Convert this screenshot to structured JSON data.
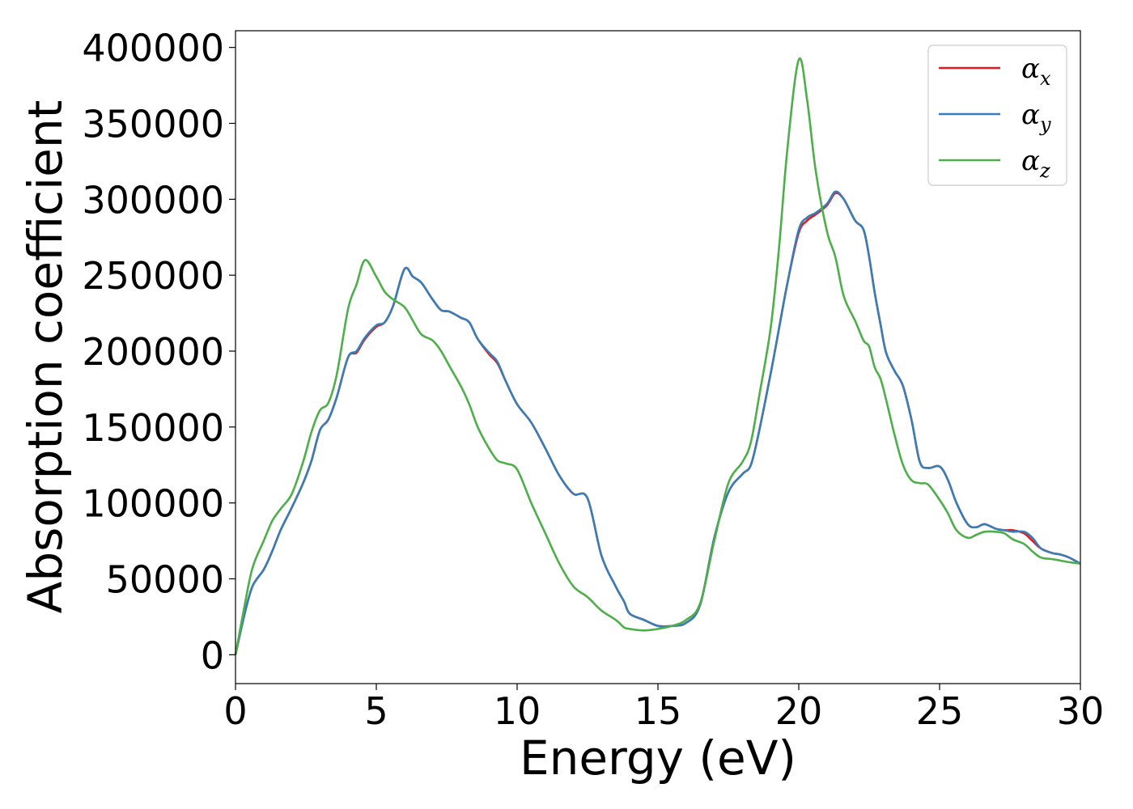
{
  "chart_data": {
    "type": "line",
    "title": "",
    "xlabel": "Energy (eV)",
    "ylabel": "Absorption coefficient",
    "xlim": [
      0,
      30
    ],
    "ylim": [
      -19000,
      411000
    ],
    "xticks": [
      0,
      5,
      10,
      15,
      20,
      25,
      30
    ],
    "xtick_labels": [
      "0",
      "5",
      "10",
      "15",
      "20",
      "25",
      "30"
    ],
    "yticks": [
      0,
      50000,
      100000,
      150000,
      200000,
      250000,
      300000,
      350000,
      400000
    ],
    "ytick_labels": [
      "0",
      "50000",
      "100000",
      "150000",
      "200000",
      "250000",
      "300000",
      "350000",
      "400000"
    ],
    "grid": false,
    "legend_position": "top-right",
    "series": [
      {
        "name": "αx",
        "symbol": "α",
        "subscript": "x",
        "color": "#e41a1c",
        "x": [
          0,
          0.3,
          0.6,
          1,
          1.3,
          1.6,
          2,
          2.4,
          2.7,
          3,
          3.3,
          3.6,
          4,
          4.3,
          4.6,
          5,
          5.3,
          5.6,
          6,
          6.3,
          6.6,
          7,
          7.3,
          7.6,
          8,
          8.3,
          8.6,
          9,
          9.3,
          9.6,
          10,
          10.5,
          11,
          11.5,
          12,
          12.5,
          13,
          13.5,
          13.8,
          14,
          14.5,
          15,
          15.5,
          16,
          16.5,
          17,
          17.5,
          18,
          18.3,
          18.6,
          19,
          19.3,
          19.6,
          20,
          20.3,
          20.6,
          21,
          21.3,
          21.6,
          22,
          22.3,
          22.5,
          22.7,
          22.9,
          23.1,
          23.4,
          23.7,
          24,
          24.3,
          24.6,
          25,
          25.3,
          25.6,
          26,
          26.3,
          26.6,
          27,
          27.3,
          27.6,
          28,
          28.3,
          28.6,
          29,
          29.3,
          29.6,
          30
        ],
        "y": [
          0,
          25000,
          45000,
          56000,
          68000,
          82000,
          97000,
          113000,
          128000,
          148000,
          155000,
          170000,
          196000,
          199000,
          208000,
          216000,
          219000,
          230000,
          254000,
          249000,
          245000,
          234000,
          227000,
          226000,
          222000,
          219000,
          208000,
          198000,
          192000,
          180000,
          165000,
          153000,
          136000,
          118000,
          106000,
          103000,
          65000,
          45000,
          35000,
          27000,
          23000,
          19000,
          19000,
          21000,
          33000,
          77000,
          107000,
          119000,
          125000,
          148000,
          185000,
          215000,
          245000,
          278000,
          286000,
          290000,
          296000,
          304000,
          300000,
          286000,
          280000,
          262000,
          238000,
          218000,
          199000,
          187000,
          177000,
          155000,
          127000,
          123000,
          124000,
          115000,
          100000,
          86000,
          84000,
          86000,
          83000,
          82000,
          82000,
          80000,
          75000,
          70000,
          67000,
          66000,
          64000,
          60000
        ]
      },
      {
        "name": "αy",
        "symbol": "α",
        "subscript": "y",
        "color": "#377eb8",
        "x": [
          0,
          0.3,
          0.6,
          1,
          1.3,
          1.6,
          2,
          2.4,
          2.7,
          3,
          3.3,
          3.6,
          4,
          4.3,
          4.6,
          5,
          5.3,
          5.6,
          6,
          6.3,
          6.6,
          7,
          7.3,
          7.6,
          8,
          8.3,
          8.6,
          9,
          9.3,
          9.6,
          10,
          10.5,
          11,
          11.5,
          12,
          12.5,
          13,
          13.5,
          13.8,
          14,
          14.5,
          15,
          15.5,
          16,
          16.5,
          17,
          17.5,
          18,
          18.3,
          18.6,
          19,
          19.3,
          19.6,
          20,
          20.3,
          20.6,
          21,
          21.3,
          21.6,
          22,
          22.3,
          22.5,
          22.7,
          22.9,
          23.1,
          23.4,
          23.7,
          24,
          24.3,
          24.6,
          25,
          25.3,
          25.6,
          26,
          26.3,
          26.6,
          27,
          27.3,
          27.6,
          28,
          28.3,
          28.6,
          29,
          29.3,
          29.6,
          30
        ],
        "y": [
          0,
          25000,
          45000,
          56000,
          68000,
          82000,
          97000,
          113000,
          128000,
          148000,
          155000,
          170000,
          196000,
          200000,
          209000,
          217000,
          219000,
          230000,
          254000,
          249000,
          245000,
          234000,
          227000,
          226000,
          222000,
          219000,
          208000,
          199000,
          193000,
          180000,
          165000,
          153000,
          136000,
          118000,
          106000,
          103000,
          65000,
          45000,
          35000,
          27000,
          23000,
          19000,
          19000,
          21000,
          33000,
          77000,
          107000,
          119000,
          125000,
          148000,
          185000,
          215000,
          245000,
          280000,
          288000,
          291000,
          297000,
          305000,
          300000,
          286000,
          280000,
          262000,
          238000,
          218000,
          199000,
          187000,
          177000,
          155000,
          127000,
          123000,
          124000,
          115000,
          100000,
          86000,
          84000,
          86000,
          83000,
          82000,
          81000,
          81000,
          77000,
          70000,
          67000,
          66000,
          64000,
          60000
        ]
      },
      {
        "name": "αz",
        "symbol": "α",
        "subscript": "z",
        "color": "#4daf4a",
        "x": [
          0,
          0.3,
          0.6,
          1,
          1.3,
          1.6,
          2,
          2.4,
          2.7,
          3,
          3.3,
          3.6,
          4,
          4.3,
          4.6,
          5,
          5.3,
          5.6,
          6,
          6.3,
          6.6,
          7,
          7.3,
          7.6,
          8,
          8.3,
          8.6,
          9,
          9.3,
          9.6,
          10,
          10.5,
          11,
          11.5,
          12,
          12.5,
          13,
          13.5,
          13.8,
          14,
          14.5,
          15,
          15.5,
          16,
          16.5,
          17,
          17.5,
          18,
          18.3,
          18.6,
          19,
          19.3,
          19.6,
          20,
          20.3,
          20.6,
          21,
          21.3,
          21.6,
          22,
          22.3,
          22.5,
          22.7,
          22.9,
          23.1,
          23.4,
          23.7,
          24,
          24.3,
          24.6,
          25,
          25.3,
          25.6,
          26,
          26.3,
          26.6,
          27,
          27.3,
          27.6,
          28,
          28.3,
          28.6,
          29,
          29.3,
          29.6,
          30
        ],
        "y": [
          0,
          30000,
          57000,
          75000,
          88000,
          96000,
          106000,
          127000,
          147000,
          161000,
          166000,
          185000,
          228000,
          244000,
          260000,
          249000,
          239000,
          234000,
          229000,
          220000,
          211000,
          207000,
          200000,
          190000,
          177000,
          165000,
          150000,
          136000,
          128000,
          126000,
          122000,
          100000,
          80000,
          60000,
          45000,
          38000,
          29000,
          23000,
          18000,
          17000,
          16000,
          17000,
          19000,
          23000,
          34000,
          75000,
          113000,
          127000,
          140000,
          171000,
          215000,
          268000,
          334000,
          392000,
          365000,
          319000,
          279000,
          262000,
          236000,
          220000,
          207000,
          203000,
          189000,
          182000,
          168000,
          145000,
          125000,
          115000,
          113000,
          112000,
          102000,
          93000,
          82000,
          77000,
          79000,
          81000,
          81000,
          80000,
          76000,
          73000,
          68000,
          64000,
          63000,
          62000,
          61000,
          60000
        ]
      }
    ]
  }
}
